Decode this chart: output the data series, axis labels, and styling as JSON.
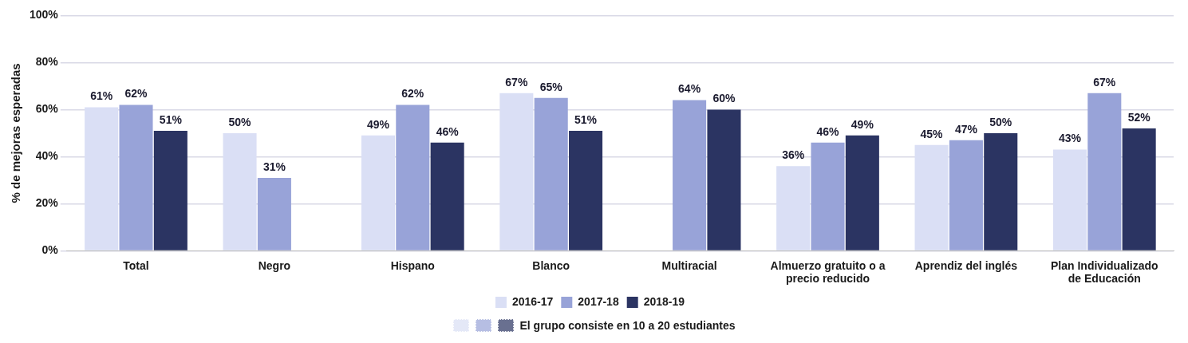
{
  "chart_data": {
    "type": "bar",
    "ylabel": "% de mejoras esperadas",
    "categories": [
      "Total",
      "Negro",
      "Hispano",
      "Blanco",
      "Multiracial",
      "Almuerzo gratuito o a precio reducido",
      "Aprendiz del inglés",
      "Plan Individualizado de Educación"
    ],
    "series": [
      {
        "name": "2016-17",
        "color": "#dadff5",
        "values": [
          61,
          50,
          49,
          67,
          null,
          36,
          45,
          43
        ],
        "value_labels": [
          "61%",
          "50%",
          "49%",
          "67%",
          null,
          "36%",
          "45%",
          "43%"
        ]
      },
      {
        "name": "2017-18",
        "color": "#98a3d8",
        "values": [
          62,
          31,
          62,
          65,
          64,
          46,
          47,
          67
        ],
        "value_labels": [
          "62%",
          "31%",
          "62%",
          "65%",
          "64%",
          "46%",
          "47%",
          "67%"
        ]
      },
      {
        "name": "2018-19",
        "color": "#2b3462",
        "values": [
          51,
          null,
          46,
          51,
          60,
          49,
          50,
          52
        ],
        "value_labels": [
          "51%",
          null,
          "46%",
          "51%",
          "60%",
          "49%",
          "50%",
          "52%"
        ]
      }
    ],
    "ylim": [
      0,
      100
    ],
    "yticks": [
      {
        "value": 0,
        "label": "0%"
      },
      {
        "value": 20,
        "label": "20%"
      },
      {
        "value": 40,
        "label": "40%"
      },
      {
        "value": 60,
        "label": "60%"
      },
      {
        "value": 80,
        "label": "80%"
      },
      {
        "value": 100,
        "label": "100%"
      }
    ],
    "grid": "y",
    "legend": "bottom",
    "annotations": [
      "El grupo consiste en 10 a 20 estudiantes"
    ]
  }
}
